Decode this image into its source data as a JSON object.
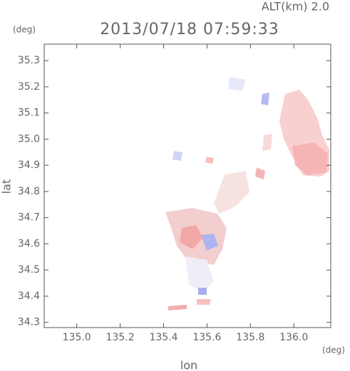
{
  "chart_data": {
    "type": "map",
    "title": "2013/07/18 07:59:33",
    "subtitle": "ALT(km) 2.0",
    "x_label": "lon",
    "y_label": "lat",
    "x_unit": "(deg)",
    "y_unit": "(deg)",
    "xlim": [
      134.85,
      136.17
    ],
    "xticks": [
      {
        "value": 135.0,
        "label": "135.0"
      },
      135.2,
      135.4,
      135.6,
      135.8,
      {
        "value": 136.0,
        "label": "136.0"
      }
    ],
    "ylim": [
      34.28,
      35.363
    ],
    "yticks": [
      34.3,
      34.4,
      34.5,
      34.6,
      34.7,
      34.8,
      34.9,
      {
        "value": 35.0,
        "label": "35.0"
      },
      35.1,
      35.2,
      35.3
    ]
  }
}
